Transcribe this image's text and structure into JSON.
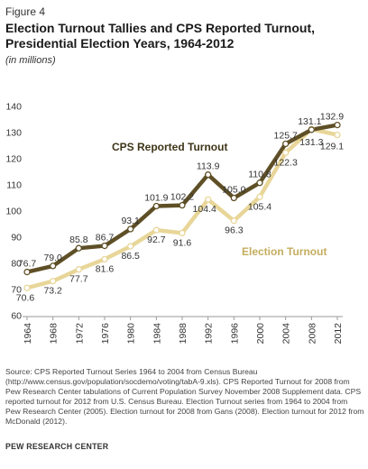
{
  "figure_label": "Figure 4",
  "title": "Election Turnout Tallies and CPS Reported Turnout, Presidential Election Years, 1964-2012",
  "subtitle": "(in millions)",
  "chart_data": {
    "type": "line",
    "x": [
      1964,
      1968,
      1972,
      1976,
      1980,
      1984,
      1988,
      1992,
      1996,
      2000,
      2004,
      2008,
      2012
    ],
    "x_tick_labels": [
      "1964",
      "1968",
      "1972",
      "1976",
      "1980",
      "1984",
      "1988",
      "1992",
      "1996",
      "2000",
      "2004",
      "2008",
      "2012"
    ],
    "y_ticks": [
      60,
      70,
      80,
      90,
      100,
      110,
      120,
      130,
      140
    ],
    "ylim": [
      60,
      140
    ],
    "grid": false,
    "series": [
      {
        "name": "CPS Reported Turnout",
        "color": "#5e4f26",
        "values": [
          76.7,
          79.0,
          85.8,
          86.7,
          93.1,
          101.9,
          102.2,
          113.9,
          105.0,
          110.8,
          125.7,
          131.1,
          132.9
        ],
        "labels": [
          "76.7",
          "79.0",
          "85.8",
          "86.7",
          "93.1",
          "101.9",
          "102.2",
          "113.9",
          "105.0",
          "110.8",
          "125.7",
          "131.1",
          "132.9"
        ]
      },
      {
        "name": "Election Turnout",
        "color": "#e8d699",
        "values": [
          70.6,
          73.2,
          77.7,
          81.6,
          86.5,
          92.7,
          91.6,
          104.4,
          96.3,
          105.4,
          122.3,
          131.3,
          129.1
        ],
        "labels": [
          "70.6",
          "73.2",
          "77.7",
          "81.6",
          "86.5",
          "92.7",
          "91.6",
          "104.4",
          "96.3",
          "105.4",
          "122.3",
          "131.3",
          "129.1"
        ]
      }
    ]
  },
  "source": {
    "p1": "Source: CPS Reported Turnout Series 1964 to 2004 from Census Bureau (",
    "link1": "http://www.census.gov/population/socdemo/voting/tabA-9.xls",
    "p2": "). CPS Reported Turnout for 2008 from Pew Research Center tabulations of Current Population Survey November 2008 Supplement data. CPS reported turnout for 2012 from U.S. Census Bureau. Election Turnout series from 1964 to 2004 from Pew Research Center (",
    "link2": "2005",
    "p3": "). Election turnout for 2008 from Gans (",
    "link3": "2008",
    "p4": "). Election turnout for 2012 from McDonald (",
    "link4": "2012",
    "p5": ")."
  },
  "footer": "PEW RESEARCH CENTER"
}
